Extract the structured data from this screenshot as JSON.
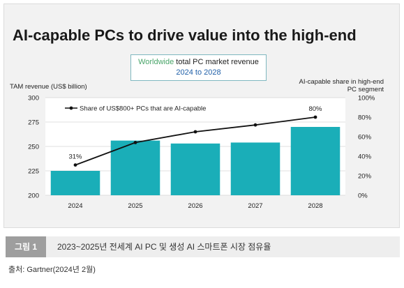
{
  "chart_data": {
    "type": "bar",
    "title": "AI-capable PCs to drive value into the high-end",
    "subtitle_part1": "Worldwide",
    "subtitle_part2": " total PC market revenue",
    "subtitle_line2": "2024 to 2028",
    "ylabel": "TAM revenue (US$ billion)",
    "y2label_line1": "AI-capable share in high-end",
    "y2label_line2": "PC segment",
    "ylim": [
      200,
      300
    ],
    "yticks": [
      "200",
      "225",
      "250",
      "275",
      "300"
    ],
    "y2lim": [
      0,
      100
    ],
    "y2ticks": [
      "0%",
      "20%",
      "40%",
      "60%",
      "80%",
      "100%"
    ],
    "categories": [
      "2024",
      "2025",
      "2026",
      "2027",
      "2028"
    ],
    "series": [
      {
        "type": "bar",
        "values": [
          225,
          256,
          253,
          254,
          270
        ]
      },
      {
        "type": "line",
        "name": "Share of US$800+ PCs that are AI-capable",
        "axis": "right",
        "values": [
          31,
          54,
          65,
          72,
          80
        ]
      }
    ],
    "data_labels": {
      "first": "31%",
      "last": "80%"
    },
    "colors": {
      "bar": "#1aaeb8",
      "line": "#111111"
    },
    "legend_position": "top-left"
  },
  "caption": {
    "tag": "그림 1",
    "text": "2023~2025년 전세계 AI PC 및 생성 AI 스마트폰 시장 점유율"
  },
  "source": "출처: Gartner(2024년 2월)"
}
